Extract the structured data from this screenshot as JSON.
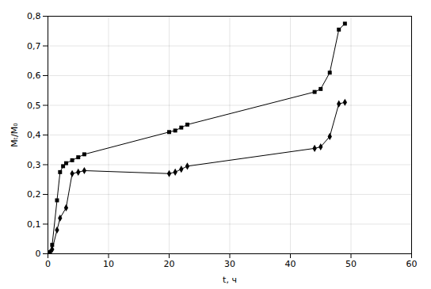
{
  "chart_data": {
    "type": "line",
    "xlabel": "t, ч",
    "ylabel": "Mₜ/M₀",
    "xlim": [
      0,
      60
    ],
    "ylim": [
      0,
      0.8
    ],
    "xticks": [
      0,
      10,
      20,
      30,
      40,
      50,
      60
    ],
    "yticks": [
      0,
      {
        "value": 0.1,
        "label": "0,1"
      },
      {
        "value": 0.2,
        "label": "0,2"
      },
      {
        "value": 0.3,
        "label": "0,3"
      },
      {
        "value": 0.4,
        "label": "0,4"
      },
      {
        "value": 0.5,
        "label": "0,5"
      },
      {
        "value": 0.6,
        "label": "0,6"
      },
      {
        "value": 0.7,
        "label": "0,7"
      },
      {
        "value": 0.8,
        "label": "0,8"
      }
    ],
    "grid": true,
    "series": [
      {
        "color": "#000000",
        "marker": "square",
        "x": [
          0,
          0.3,
          0.7,
          1.5,
          2.0,
          2.5,
          3.0,
          4.0,
          5.0,
          6.0,
          20.0,
          21.0,
          22.0,
          23.0,
          44.0,
          45.0,
          46.5,
          48.0,
          49.0
        ],
        "values": [
          0,
          0.005,
          0.03,
          0.18,
          0.275,
          0.295,
          0.305,
          0.315,
          0.325,
          0.335,
          0.41,
          0.415,
          0.425,
          0.435,
          0.545,
          0.555,
          0.61,
          0.755,
          0.775
        ]
      },
      {
        "color": "#000000",
        "marker": "diamond",
        "x": [
          0,
          0.3,
          0.7,
          1.5,
          2.0,
          3.0,
          4.0,
          5.0,
          6.0,
          20.0,
          21.0,
          22.0,
          23.0,
          44.0,
          45.0,
          46.5,
          48.0,
          49.0
        ],
        "values": [
          0,
          0.003,
          0.015,
          0.08,
          0.12,
          0.155,
          0.27,
          0.275,
          0.28,
          0.27,
          0.275,
          0.285,
          0.295,
          0.355,
          0.36,
          0.395,
          0.505,
          0.51
        ]
      }
    ]
  }
}
